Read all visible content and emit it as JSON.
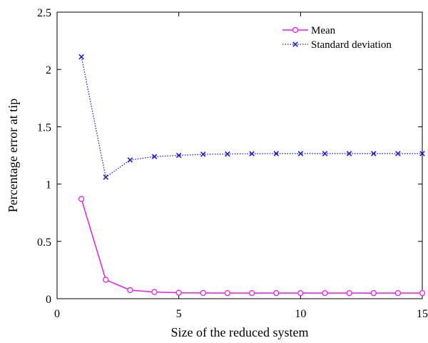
{
  "chart_data": {
    "type": "line",
    "title": "",
    "xlabel": "Size of the reduced system",
    "ylabel": "Percentage error at tip",
    "xlim": [
      0,
      15
    ],
    "ylim": [
      0,
      2.5
    ],
    "xticks": [
      0,
      5,
      10,
      15
    ],
    "yticks": [
      0,
      0.5,
      1,
      1.5,
      2,
      2.5
    ],
    "xtick_labels": [
      "0",
      "5",
      "10",
      "15"
    ],
    "ytick_labels": [
      "0",
      "0.5",
      "1",
      "1.5",
      "2",
      "2.5"
    ],
    "grid": false,
    "legend_position": "top-right",
    "x": [
      1,
      2,
      3,
      4,
      5,
      6,
      7,
      8,
      9,
      10,
      11,
      12,
      13,
      14,
      15
    ],
    "series": [
      {
        "name": "Mean",
        "color": "#e61ee6",
        "line_style": "solid",
        "marker": "circle",
        "values": [
          0.87,
          0.165,
          0.075,
          0.058,
          0.052,
          0.05,
          0.049,
          0.049,
          0.049,
          0.049,
          0.049,
          0.049,
          0.049,
          0.049,
          0.049
        ]
      },
      {
        "name": "Standard deviation",
        "color": "#1f1fcc",
        "line_style": "dotted",
        "marker": "x",
        "values": [
          2.11,
          1.06,
          1.21,
          1.24,
          1.25,
          1.26,
          1.262,
          1.265,
          1.266,
          1.266,
          1.266,
          1.266,
          1.266,
          1.266,
          1.266
        ]
      }
    ]
  }
}
